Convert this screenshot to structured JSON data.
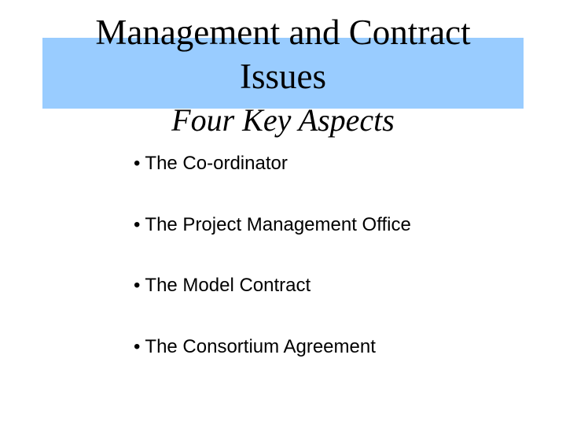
{
  "slide": {
    "title_line1": "Management and Contract",
    "title_line2": "Issues",
    "subtitle": "Four Key Aspects",
    "bullet_symbol": "•",
    "bullets": [
      "The Co-ordinator",
      "The Project Management Office",
      "The Model Contract",
      "The Consortium Agreement"
    ],
    "colors": {
      "title_band": "#99ccff",
      "background": "#ffffff",
      "text": "#000000"
    }
  }
}
